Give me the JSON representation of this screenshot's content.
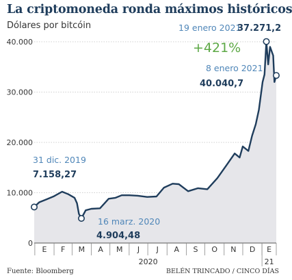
{
  "chart_data": {
    "type": "line",
    "title": "La criptomoneda ronda máximos históricos",
    "ylabel": "Dólares por bitcóin",
    "ylim": [
      0,
      40000
    ],
    "y_ticks": [
      "40.000",
      "30.000",
      "20.000",
      "10.000",
      "0"
    ],
    "y_tick_values": [
      40000,
      30000,
      20000,
      10000,
      0
    ],
    "month_labels": [
      "E",
      "F",
      "M",
      "A",
      "M",
      "J",
      "J",
      "A",
      "S",
      "O",
      "N",
      "D",
      "E"
    ],
    "year_labels": [
      "2020",
      "21"
    ],
    "x_range": [
      "2019-12-31",
      "2021-01-24"
    ],
    "series": [
      {
        "x": [
          "2019-12-31",
          "2020-01-08",
          "2020-01-20",
          "2020-02-01",
          "2020-02-14",
          "2020-02-24",
          "2020-03-05",
          "2020-03-09",
          "2020-03-12",
          "2020-03-16",
          "2020-03-23",
          "2020-04-01",
          "2020-04-15",
          "2020-04-29",
          "2020-05-10",
          "2020-05-20",
          "2020-06-01",
          "2020-06-15",
          "2020-06-30",
          "2020-07-15",
          "2020-07-27",
          "2020-08-10",
          "2020-08-20",
          "2020-09-04",
          "2020-09-20",
          "2020-10-05",
          "2020-10-21",
          "2020-11-05",
          "2020-11-18",
          "2020-11-26",
          "2020-12-01",
          "2020-12-10",
          "2020-12-16",
          "2020-12-22",
          "2020-12-27",
          "2021-01-02",
          "2021-01-05",
          "2021-01-08",
          "2021-01-11",
          "2021-01-14",
          "2021-01-19",
          "2021-01-21",
          "2021-01-24"
        ],
        "y": [
          7158.27,
          8100,
          8700,
          9300,
          10200,
          9700,
          9000,
          7900,
          5800,
          4904.48,
          6500,
          6800,
          6900,
          8800,
          9000,
          9500,
          9500,
          9400,
          9150,
          9250,
          11000,
          11800,
          11700,
          10300,
          10900,
          10700,
          12900,
          15500,
          17800,
          17000,
          19200,
          18300,
          21300,
          23600,
          26500,
          32000,
          33500,
          40040.7,
          35500,
          39000,
          37271.2,
          32000,
          33300
        ]
      }
    ],
    "annotations": [
      {
        "date": "31 dic. 2019",
        "value": "7.158,27"
      },
      {
        "date": "16 marz. 2020",
        "value": "4.904,48"
      },
      {
        "date": "8 enero 2021",
        "value": "40.040,7"
      },
      {
        "date": "19 enero 2021",
        "value": "37.271,2"
      }
    ],
    "change_label": "+421%",
    "colors": {
      "line": "#1f3d5c",
      "area": "#e6e6ea",
      "annotation_date": "#4f86b8",
      "change": "#5ca845"
    }
  },
  "footer": {
    "source": "Fuente: Bloomberg",
    "credit": "BELÉN TRINCADO / CINCO DÍAS"
  }
}
